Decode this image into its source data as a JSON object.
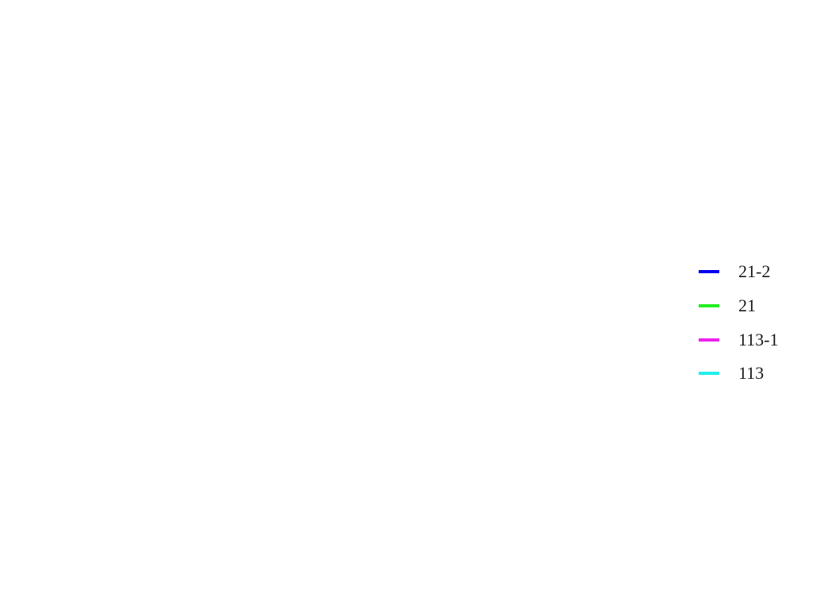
{
  "legend": [
    {
      "label": "21-2",
      "color": "#0000ee"
    },
    {
      "label": "21",
      "color": "#22ee22"
    },
    {
      "label": "113-1",
      "color": "#ee22ee"
    },
    {
      "label": "113",
      "color": "#22eeee"
    }
  ]
}
